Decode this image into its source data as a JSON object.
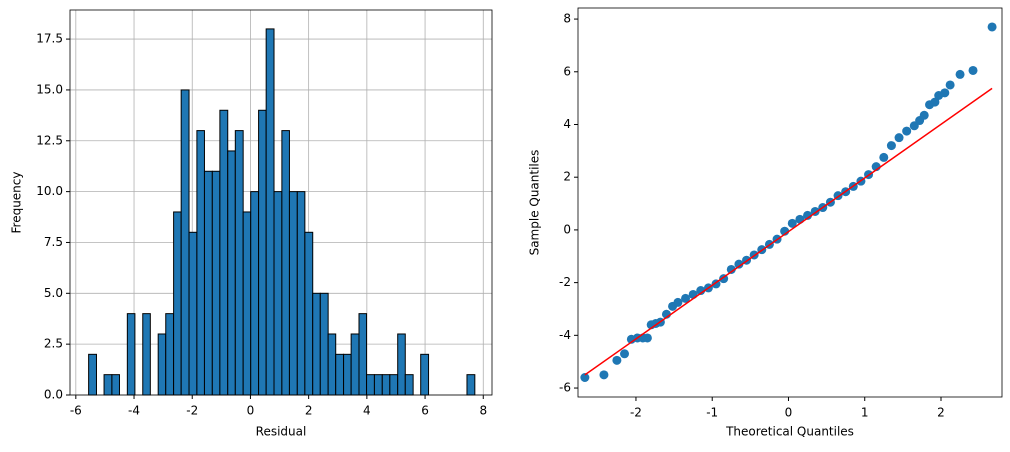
{
  "chart_data": [
    {
      "type": "histogram",
      "xlabel": "Residual",
      "ylabel": "Frequency",
      "color": "#1f77b4",
      "edgecolor": "#000000",
      "grid": true,
      "bins": [
        -5.56,
        -5.29,
        -5.03,
        -4.76,
        -4.5,
        -4.23,
        -3.97,
        -3.7,
        -3.44,
        -3.17,
        -2.91,
        -2.64,
        -2.38,
        -2.11,
        -1.84,
        -1.58,
        -1.31,
        -1.05,
        -0.78,
        -0.52,
        -0.25,
        0.01,
        0.28,
        0.54,
        0.81,
        1.08,
        1.34,
        1.61,
        1.87,
        2.14,
        2.4,
        2.67,
        2.93,
        3.2,
        3.46,
        3.73,
        3.99,
        4.26,
        4.53,
        4.79,
        5.06,
        5.32,
        5.59,
        5.85,
        6.12,
        6.38,
        6.65,
        6.91,
        7.18,
        7.44,
        7.71
      ],
      "counts": [
        2,
        0,
        1,
        1,
        0,
        4,
        0,
        4,
        0,
        3,
        4,
        9,
        15,
        8,
        13,
        11,
        11,
        14,
        12,
        13,
        9,
        10,
        14,
        18,
        10,
        13,
        10,
        10,
        8,
        5,
        5,
        3,
        2,
        2,
        3,
        4,
        1,
        1,
        1,
        1,
        3,
        1,
        0,
        2,
        0,
        0,
        0,
        0,
        0,
        1
      ],
      "xlim": [
        -6.2,
        8.3
      ],
      "xticks": [
        -6,
        -4,
        -2,
        0,
        2,
        4,
        6,
        8
      ],
      "ylim": [
        0,
        18.93
      ],
      "yticks": [
        {
          "value": 0,
          "label": "0.0"
        },
        2.5,
        {
          "value": 5,
          "label": "5.0"
        },
        7.5,
        {
          "value": 10,
          "label": "10.0"
        },
        12.5,
        {
          "value": 15,
          "label": "15.0"
        },
        17.5
      ]
    },
    {
      "type": "scatter",
      "xlabel": "Theoretical Quantiles",
      "ylabel": "Sample Quantiles",
      "color": "#1f77b4",
      "x": [
        -2.67,
        -2.42,
        -2.25,
        -2.15,
        -2.06,
        -1.98,
        -1.91,
        -1.85,
        -1.8,
        -1.74,
        -1.68,
        -1.6,
        -1.52,
        -1.45,
        -1.35,
        -1.25,
        -1.15,
        -1.05,
        -0.95,
        -0.85,
        -0.75,
        -0.65,
        -0.55,
        -0.45,
        -0.35,
        -0.25,
        -0.15,
        -0.05,
        0.05,
        0.15,
        0.25,
        0.35,
        0.45,
        0.55,
        0.65,
        0.75,
        0.85,
        0.95,
        1.05,
        1.15,
        1.25,
        1.35,
        1.45,
        1.55,
        1.65,
        1.72,
        1.78,
        1.85,
        1.92,
        1.97,
        2.05,
        2.12,
        2.25,
        2.42,
        2.67
      ],
      "y": [
        -5.6,
        -5.5,
        -4.95,
        -4.7,
        -4.15,
        -4.1,
        -4.1,
        -4.1,
        -3.6,
        -3.55,
        -3.5,
        -3.2,
        -2.9,
        -2.75,
        -2.6,
        -2.45,
        -2.3,
        -2.2,
        -2.05,
        -1.85,
        -1.5,
        -1.3,
        -1.15,
        -0.95,
        -0.75,
        -0.55,
        -0.35,
        -0.05,
        0.25,
        0.4,
        0.55,
        0.7,
        0.85,
        1.05,
        1.3,
        1.45,
        1.65,
        1.85,
        2.1,
        2.4,
        2.75,
        3.2,
        3.5,
        3.75,
        3.95,
        4.15,
        4.35,
        4.75,
        4.85,
        5.1,
        5.2,
        5.5,
        5.9,
        6.05,
        7.7
      ],
      "line": {
        "color": "#ff0000",
        "x": [
          -2.67,
          2.67
        ],
        "y": [
          -5.5,
          5.37
        ]
      },
      "xlim": [
        -2.76,
        2.8
      ],
      "xticks": [
        -2,
        -1,
        0,
        1,
        2
      ],
      "ylim": [
        -6.34,
        8.42
      ],
      "yticks": [
        -6,
        -4,
        -2,
        0,
        2,
        4,
        6,
        8
      ]
    }
  ]
}
